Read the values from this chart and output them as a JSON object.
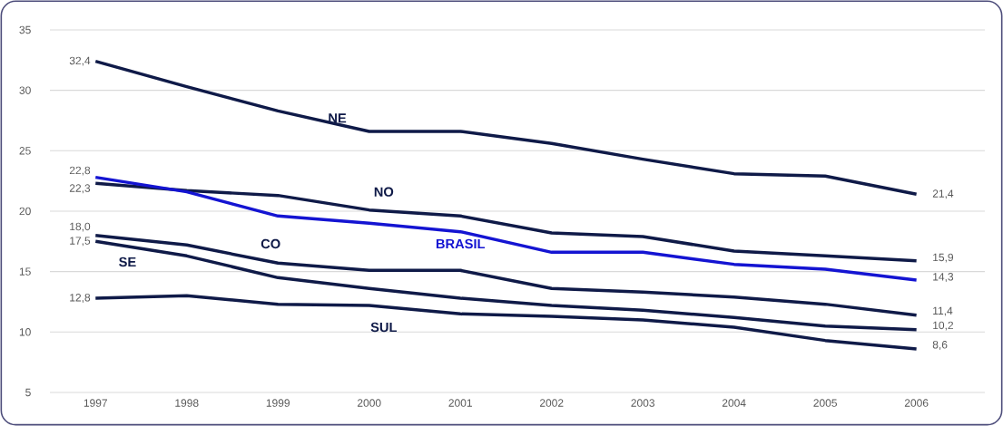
{
  "chart_data": {
    "type": "line",
    "categories": [
      "1997",
      "1998",
      "1999",
      "2000",
      "2001",
      "2002",
      "2003",
      "2004",
      "2005",
      "2006"
    ],
    "ylim": [
      5,
      35
    ],
    "yticks": [
      5,
      10,
      15,
      20,
      25,
      30,
      35
    ],
    "grid": "y",
    "legend": false,
    "marker": "none",
    "line_style": "solid",
    "series": [
      {
        "name": "NE",
        "color": "#0f1a48",
        "values": [
          32.4,
          30.3,
          28.3,
          26.6,
          26.6,
          25.6,
          24.3,
          23.1,
          22.9,
          21.4
        ],
        "value_labels": [
          "32,4",
          null,
          null,
          null,
          null,
          null,
          null,
          null,
          null,
          "21,4"
        ]
      },
      {
        "name": "NO",
        "color": "#0f1a48",
        "values": [
          22.3,
          21.7,
          21.3,
          20.1,
          19.6,
          18.2,
          17.9,
          16.7,
          16.3,
          15.9
        ],
        "value_labels": [
          "22,3",
          null,
          null,
          null,
          null,
          null,
          null,
          null,
          null,
          "15,9"
        ]
      },
      {
        "name": "BRASIL",
        "color": "#1414d2",
        "values": [
          22.8,
          21.6,
          19.6,
          19.0,
          18.3,
          16.6,
          16.6,
          15.6,
          15.2,
          14.3
        ],
        "value_labels": [
          "22,8",
          null,
          null,
          null,
          null,
          null,
          null,
          null,
          null,
          "14,3"
        ]
      },
      {
        "name": "CO",
        "color": "#0f1a48",
        "values": [
          18.0,
          17.2,
          15.7,
          15.1,
          15.1,
          13.6,
          13.3,
          12.9,
          12.3,
          11.4
        ],
        "value_labels": [
          "18,0",
          null,
          null,
          null,
          null,
          null,
          null,
          null,
          null,
          "11,4"
        ]
      },
      {
        "name": "SE",
        "color": "#0f1a48",
        "values": [
          17.5,
          16.3,
          14.5,
          13.6,
          12.8,
          12.2,
          11.8,
          11.2,
          10.5,
          10.2
        ],
        "value_labels": [
          "17,5",
          null,
          null,
          null,
          null,
          null,
          null,
          null,
          null,
          "10,2"
        ]
      },
      {
        "name": "SUL",
        "color": "#0f1a48",
        "values": [
          12.8,
          13.0,
          12.3,
          12.2,
          11.5,
          11.3,
          11.0,
          10.4,
          9.3,
          8.6
        ],
        "value_labels": [
          "12,8",
          null,
          null,
          null,
          null,
          null,
          null,
          null,
          null,
          "8,6"
        ]
      }
    ]
  }
}
